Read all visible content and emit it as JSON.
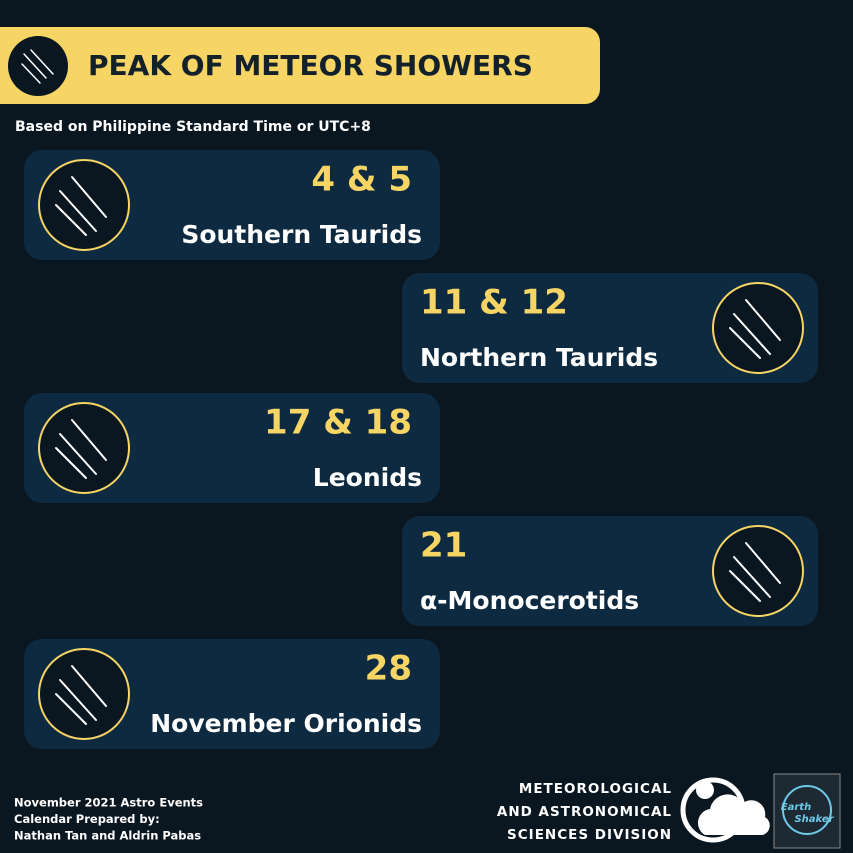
{
  "header": {
    "title": "PEAK OF METEOR SHOWERS",
    "subtitle": "Based on Philippine Standard Time or UTC+8"
  },
  "showers": [
    {
      "dates": "4 & 5",
      "name": "Southern Taurids"
    },
    {
      "dates": "11 & 12",
      "name": "Northern Taurids"
    },
    {
      "dates": "17 & 18",
      "name": "Leonids"
    },
    {
      "dates": "21",
      "name": "α-Monocerotids"
    },
    {
      "dates": "28",
      "name": "November Orionids"
    }
  ],
  "footer": {
    "credits": [
      "November 2021 Astro Events",
      "Calendar Prepared by:",
      "Nathan Tan and Aldrin Pabas"
    ],
    "division": [
      "METEOROLOGICAL",
      "AND ASTRONOMICAL",
      "SCIENCES DIVISION"
    ],
    "logo": [
      "Earth",
      "Shaker"
    ]
  }
}
